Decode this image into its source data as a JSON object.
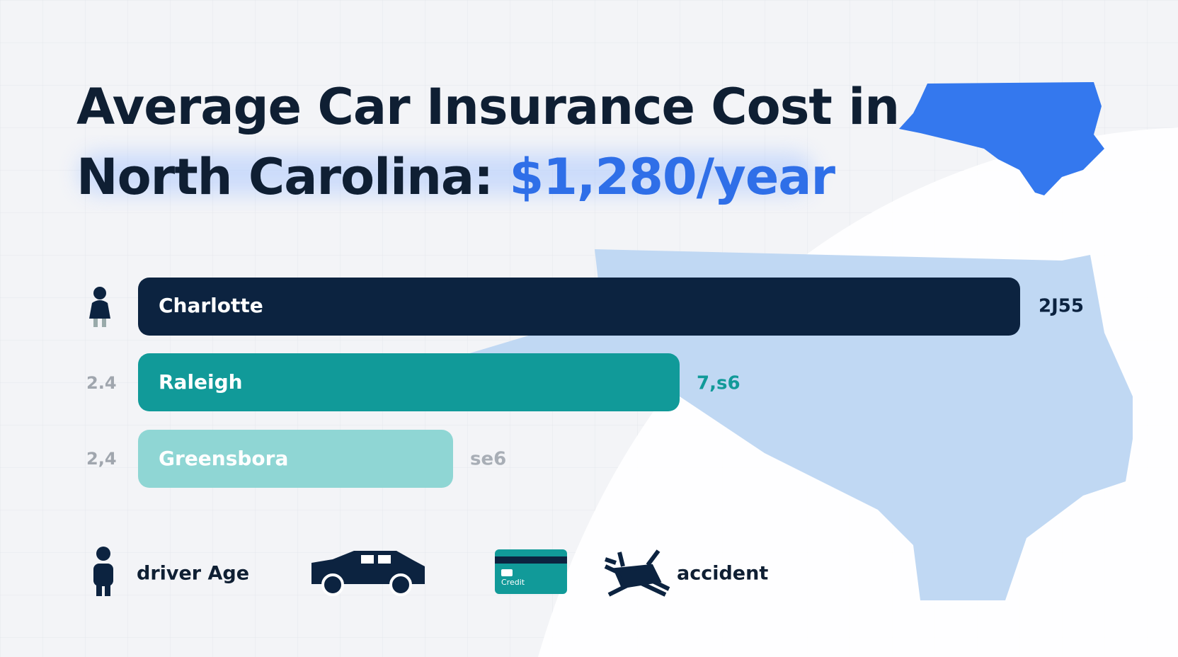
{
  "header": {
    "title_line1": "Average Car Insurance Cost in",
    "title_line2": "North Carolina: ",
    "title_highlight": "$1,280/year"
  },
  "bars": [
    {
      "label": "Charlotte",
      "value_text": "2J55"
    },
    {
      "label": "Raleigh",
      "value_text": "7,s6",
      "side_text": "2.4"
    },
    {
      "label": "Greensbora",
      "value_text": "se6",
      "side_text": "2,4"
    }
  ],
  "factors": {
    "driver": "driver Age",
    "card": "Credit",
    "accident": "accident"
  }
}
